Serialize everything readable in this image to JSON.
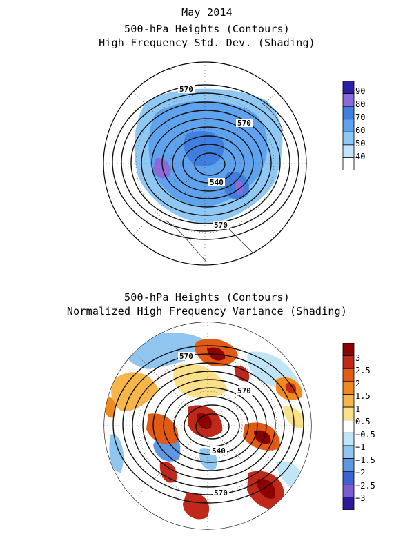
{
  "top_panel": {
    "title_lines": [
      "May 2014",
      "500-hPa Heights (Contours)",
      "High Frequency Std. Dev. (Shading)"
    ],
    "contour_labels": [
      "570",
      "570",
      "540",
      "570"
    ],
    "colorbar": {
      "labels": [
        "90",
        "80",
        "70",
        "60",
        "50",
        "40"
      ],
      "colors": [
        "#2a1fa6",
        "#8a6bd9",
        "#3f7fe0",
        "#5fa3ee",
        "#8fc7f5",
        "#c3e5fb",
        "#ffffff"
      ]
    }
  },
  "bottom_panel": {
    "title_lines": [
      "500-hPa Heights (Contours)",
      "Normalized High Frequency Variance (Shading)"
    ],
    "contour_labels": [
      "570",
      "570",
      "540",
      "570"
    ],
    "colorbar": {
      "labels": [
        "3",
        "2.5",
        "2",
        "1.5",
        "1",
        "0.5",
        "−0.5",
        "−1",
        "−1.5",
        "−2",
        "−2.5",
        "−3"
      ],
      "colors": [
        "#8b0000",
        "#c0281a",
        "#e25a14",
        "#f08a1e",
        "#f6b64a",
        "#fbe08a",
        "#ffffff",
        "#bfe5f6",
        "#8fc5ef",
        "#5f98e2",
        "#3b63d4",
        "#7a5bd0",
        "#2d1a9a"
      ]
    }
  }
}
